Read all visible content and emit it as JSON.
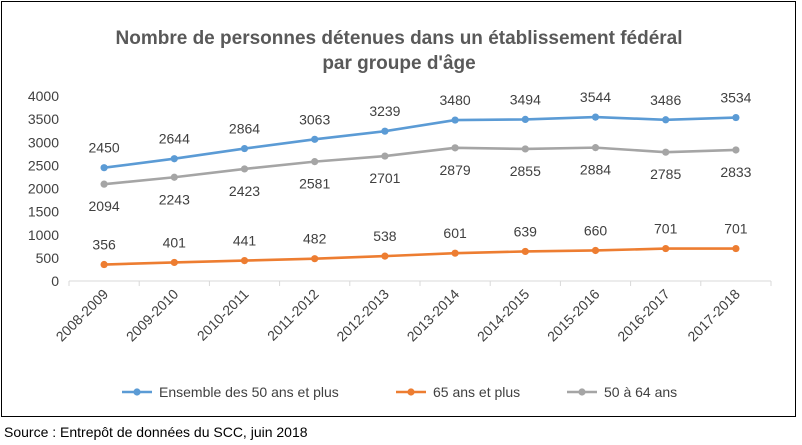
{
  "chart_data": {
    "type": "line",
    "title_lines": [
      "Nombre de personnes détenues dans un établissement fédéral",
      "par groupe d'âge"
    ],
    "categories": [
      "2008-2009",
      "2009-2010",
      "2010-2011",
      "2011-2012",
      "2012-2013",
      "2013-2014",
      "2014-2015",
      "2015-2016",
      "2016-2017",
      "2017-2018"
    ],
    "ylim": [
      0,
      4000
    ],
    "yticks": [
      "0",
      "500",
      "1000",
      "1500",
      "2000",
      "2500",
      "3000",
      "3500",
      "4000"
    ],
    "grid": false,
    "legend_position": "bottom",
    "series": [
      {
        "name": "Ensemble des 50 ans et plus",
        "color": "#5b9bd5",
        "label_position": "above",
        "values": [
          2450,
          2644,
          2864,
          3063,
          3239,
          3480,
          3494,
          3544,
          3486,
          3534
        ]
      },
      {
        "name": "65 ans et plus",
        "color": "#ed7d31",
        "label_position": "above",
        "values": [
          356,
          401,
          441,
          482,
          538,
          601,
          639,
          660,
          701,
          701
        ]
      },
      {
        "name": "50 à 64 ans",
        "color": "#a5a5a5",
        "label_position": "below",
        "values": [
          2094,
          2243,
          2423,
          2581,
          2701,
          2879,
          2855,
          2884,
          2785,
          2833
        ]
      }
    ]
  },
  "source": "Source : Entrepôt de données du SCC, juin 2018"
}
